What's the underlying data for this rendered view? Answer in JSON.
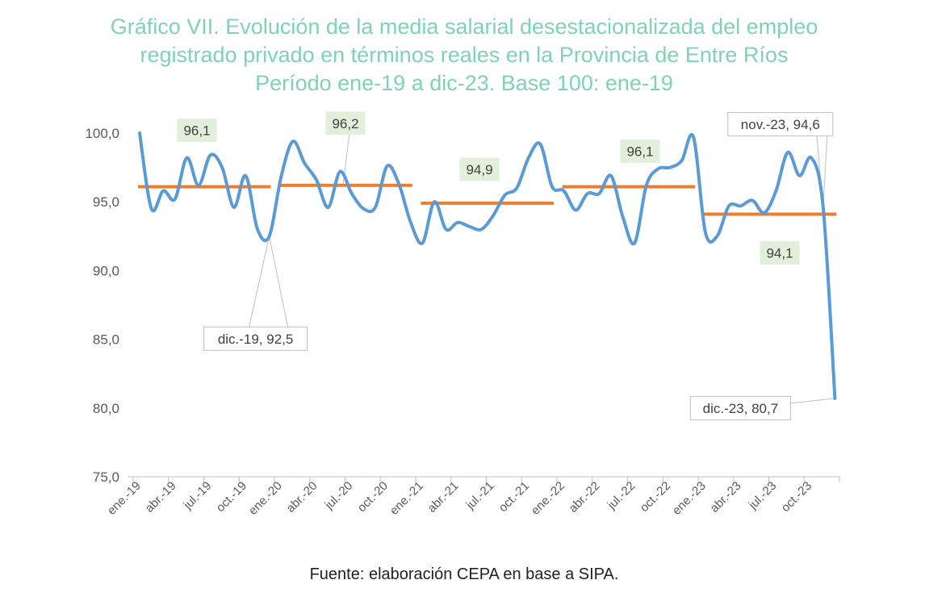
{
  "title_lines": [
    "Gráfico VII. Evolución de la media salarial desestacionalizada del empleo",
    "registrado privado en términos reales en la Provincia de Entre Ríos",
    "Período ene-19 a dic-23. Base 100: ene-19"
  ],
  "source": "Fuente: elaboración CEPA en base a SIPA.",
  "colors": {
    "title": "#7fd3b4",
    "series": "#5b9bd5",
    "average": "#ed7d31",
    "label_fill_green": "#e2efda",
    "label_border": "#bfbfbf"
  },
  "chart_data": {
    "type": "line",
    "ylim": [
      75,
      100
    ],
    "yticks": [
      "100,0",
      "95,0",
      "90,0",
      "85,0",
      "80,0",
      "75,0"
    ],
    "ytick_values": [
      100,
      95,
      90,
      85,
      80,
      75
    ],
    "x_tick_labels": [
      "ene.-19",
      "abr.-19",
      "jul.-19",
      "oct.-19",
      "ene.-20",
      "abr.-20",
      "jul.-20",
      "oct.-20",
      "ene.-21",
      "abr.-21",
      "jul.-21",
      "oct.-21",
      "ene.-22",
      "abr.-22",
      "jul.-22",
      "oct.-22",
      "ene.-23",
      "abr.-23",
      "jul.-23",
      "oct.-23"
    ],
    "series": [
      {
        "values": [
          100.0,
          94.5,
          95.8,
          95.2,
          98.2,
          96.2,
          98.4,
          97.5,
          94.6,
          96.9,
          93.0,
          92.5,
          96.8,
          99.4,
          97.8,
          96.6,
          94.6,
          97.2,
          95.6,
          94.5,
          94.6,
          97.6,
          96.3,
          93.5,
          92.0,
          95.0,
          93.0,
          93.5,
          93.2,
          93.0,
          94.0,
          95.5,
          96.0,
          98.2,
          99.2,
          96.1,
          95.8,
          94.4,
          95.6,
          95.6,
          96.9,
          93.9,
          92.0,
          96.2,
          97.4,
          97.5,
          98.0,
          99.7,
          92.8,
          92.5,
          94.7,
          94.7,
          95.1,
          94.2,
          95.8,
          98.6,
          96.9,
          98.2,
          94.6,
          80.7
        ]
      }
    ],
    "averages": [
      {
        "from": 0,
        "to": 11,
        "value": 96.1,
        "label": "96,1"
      },
      {
        "from": 12,
        "to": 23,
        "value": 96.2,
        "label": "96,2"
      },
      {
        "from": 24,
        "to": 35,
        "value": 94.9,
        "label": "94,9"
      },
      {
        "from": 36,
        "to": 47,
        "value": 96.1,
        "label": "96,1"
      },
      {
        "from": 48,
        "to": 59,
        "value": 94.1,
        "label": "94,1"
      }
    ],
    "point_labels": [
      {
        "index": 11,
        "text": "dic.-19, 92,5"
      },
      {
        "index": 58,
        "text": "nov.-23, 94,6"
      },
      {
        "index": 59,
        "text": "dic.-23, 80,7"
      }
    ]
  }
}
